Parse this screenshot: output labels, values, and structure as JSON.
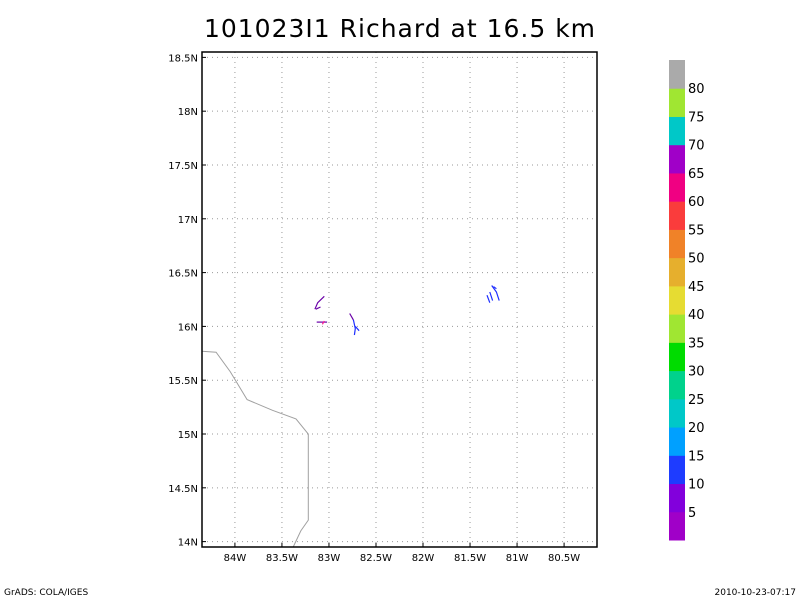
{
  "title": "101023I1 Richard at 16.5 km",
  "footer": {
    "left": "GrADS: COLA/IGES",
    "right": "2010-10-23-07:17"
  },
  "map": {
    "lon_range": [
      -84.35,
      -80.15
    ],
    "lat_range": [
      13.95,
      18.55
    ],
    "lon_ticks": [
      {
        "value": -84.0,
        "label": "84W"
      },
      {
        "value": -83.5,
        "label": "83.5W"
      },
      {
        "value": -83.0,
        "label": "83W"
      },
      {
        "value": -82.5,
        "label": "82.5W"
      },
      {
        "value": -82.0,
        "label": "82W"
      },
      {
        "value": -81.5,
        "label": "81.5W"
      },
      {
        "value": -81.0,
        "label": "81W"
      },
      {
        "value": -80.5,
        "label": "80.5W"
      }
    ],
    "lat_ticks": [
      {
        "value": 14.0,
        "label": "14N"
      },
      {
        "value": 14.5,
        "label": "14.5N"
      },
      {
        "value": 15.0,
        "label": "15N"
      },
      {
        "value": 15.5,
        "label": "15.5N"
      },
      {
        "value": 16.0,
        "label": "16N"
      },
      {
        "value": 16.5,
        "label": "16.5N"
      },
      {
        "value": 17.0,
        "label": "17N"
      },
      {
        "value": 17.5,
        "label": "17.5N"
      },
      {
        "value": 18.0,
        "label": "18N"
      },
      {
        "value": 18.5,
        "label": "18.5N"
      }
    ],
    "grid": true,
    "coastline_color": "#a0a0a0",
    "coastline": [
      [
        -84.35,
        15.77
      ],
      [
        -84.2,
        15.76
      ],
      [
        -84.05,
        15.58
      ],
      [
        -83.87,
        15.32
      ],
      [
        -83.6,
        15.22
      ],
      [
        -83.35,
        15.14
      ],
      [
        -83.22,
        15.0
      ],
      [
        -83.22,
        14.2
      ],
      [
        -83.3,
        14.1
      ],
      [
        -83.38,
        13.95
      ]
    ],
    "wind_segments": [
      {
        "color": "#6a00a8",
        "points": [
          [
            -83.05,
            16.28
          ],
          [
            -83.12,
            16.22
          ],
          [
            -83.15,
            16.16
          ]
        ]
      },
      {
        "color": "#6a00a8",
        "points": [
          [
            -83.09,
            16.18
          ],
          [
            -83.14,
            16.16
          ]
        ]
      },
      {
        "color": "#6a00a8",
        "points": [
          [
            -83.13,
            16.04
          ],
          [
            -83.02,
            16.04
          ]
        ]
      },
      {
        "color": "#ff1a8c",
        "points": [
          [
            -83.05,
            16.05
          ],
          [
            -83.07,
            16.02
          ]
        ]
      },
      {
        "color": "#6a00a8",
        "points": [
          [
            -82.78,
            16.12
          ],
          [
            -82.74,
            16.06
          ]
        ]
      },
      {
        "color": "#1e2eff",
        "points": [
          [
            -82.74,
            16.06
          ],
          [
            -82.72,
            15.98
          ],
          [
            -82.73,
            15.92
          ]
        ]
      },
      {
        "color": "#1e2eff",
        "points": [
          [
            -82.72,
            16.0
          ],
          [
            -82.68,
            15.96
          ]
        ]
      },
      {
        "color": "#1e2eff",
        "points": [
          [
            -81.27,
            16.38
          ],
          [
            -81.22,
            16.32
          ],
          [
            -81.19,
            16.24
          ]
        ]
      },
      {
        "color": "#1e2eff",
        "points": [
          [
            -81.29,
            16.32
          ],
          [
            -81.26,
            16.24
          ]
        ]
      },
      {
        "color": "#1e2eff",
        "points": [
          [
            -81.32,
            16.29
          ],
          [
            -81.29,
            16.22
          ]
        ]
      },
      {
        "color": "#1e2eff",
        "points": [
          [
            -81.25,
            16.37
          ],
          [
            -81.22,
            16.35
          ]
        ]
      }
    ]
  },
  "colorbar": {
    "labels": [
      "5",
      "10",
      "15",
      "20",
      "25",
      "30",
      "35",
      "40",
      "45",
      "50",
      "55",
      "60",
      "65",
      "70",
      "75",
      "80"
    ],
    "colors": [
      "#a000c8",
      "#8200dc",
      "#1e3cff",
      "#00a0ff",
      "#00c8c8",
      "#00d28c",
      "#00dc00",
      "#a0e632",
      "#e6dc32",
      "#e6af2d",
      "#f08228",
      "#fa3c3c",
      "#f00082",
      "#a000c8",
      "#00c8c8",
      "#a0e632",
      "#aaaaaa"
    ]
  }
}
